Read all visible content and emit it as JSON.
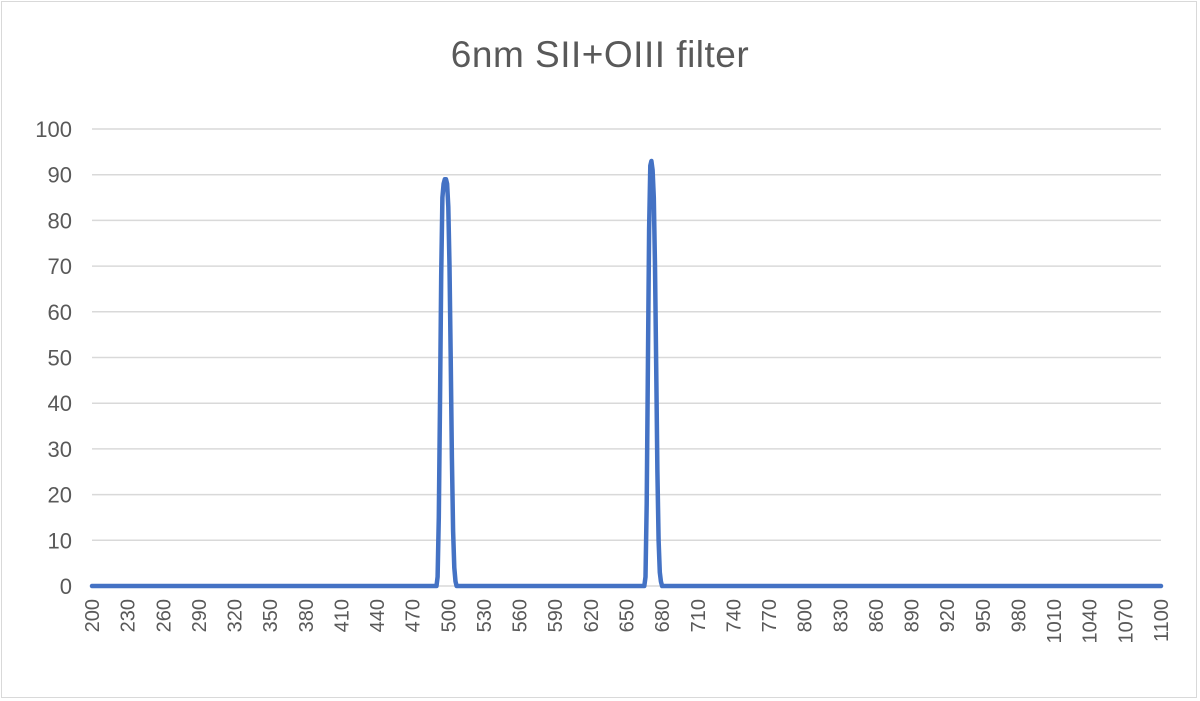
{
  "chart_data": {
    "type": "line",
    "title": "6nm SII+OIII filter",
    "xlabel": "",
    "ylabel": "",
    "xlim": [
      200,
      1100
    ],
    "ylim": [
      0,
      100
    ],
    "y_ticks": [
      0,
      10,
      20,
      30,
      40,
      50,
      60,
      70,
      80,
      90,
      100
    ],
    "x_ticks": [
      200,
      230,
      260,
      290,
      320,
      350,
      380,
      410,
      440,
      470,
      500,
      530,
      560,
      590,
      620,
      650,
      680,
      710,
      740,
      770,
      800,
      830,
      860,
      890,
      920,
      950,
      980,
      1010,
      1040,
      1070,
      1100
    ],
    "grid": true,
    "legend": "none",
    "series_color": "#4472c4",
    "series": [
      {
        "x": [
          200,
          490,
          491,
          492,
          493,
          494,
          495,
          496,
          497,
          498,
          499,
          500,
          501,
          502,
          503,
          504,
          505,
          506,
          507,
          508,
          509,
          510,
          665,
          666,
          667,
          668,
          669,
          670,
          671,
          672,
          673,
          674,
          675,
          676,
          677,
          678,
          679,
          680,
          1100
        ],
        "y": [
          0,
          0,
          2,
          15,
          40,
          68,
          85,
          88,
          89,
          89,
          88,
          83,
          70,
          50,
          28,
          12,
          4,
          1,
          0,
          0,
          0,
          0,
          0,
          2,
          18,
          48,
          78,
          92,
          93,
          91,
          85,
          70,
          48,
          25,
          10,
          3,
          1,
          0,
          0
        ]
      }
    ]
  }
}
